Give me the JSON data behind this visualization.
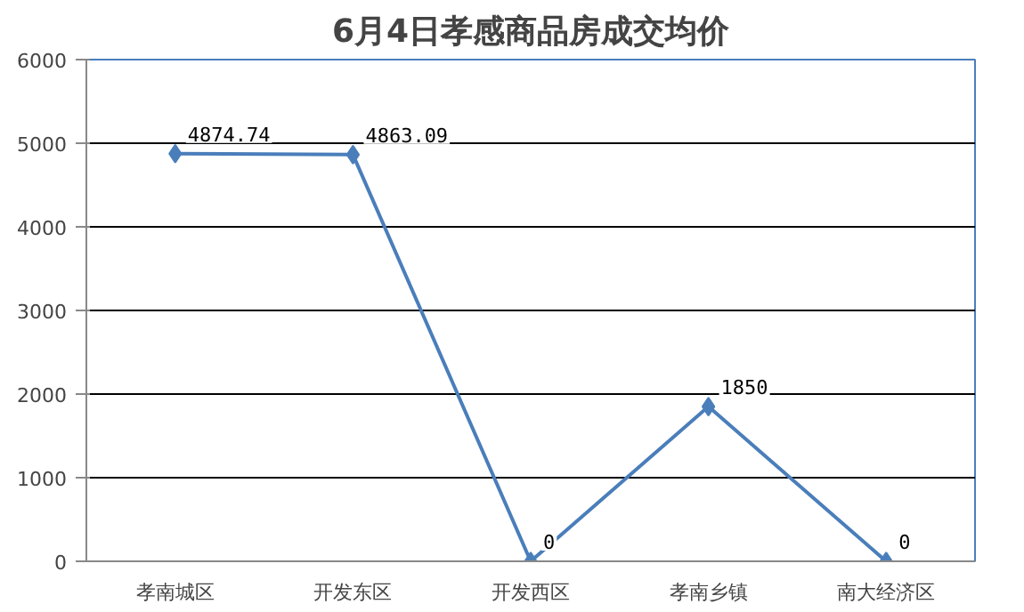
{
  "chart_data": {
    "type": "line",
    "title": "6月4日孝感商品房成交均价",
    "categories": [
      "孝南城区",
      "开发东区",
      "开发西区",
      "孝南乡镇",
      "南大经济区"
    ],
    "values": [
      4874.74,
      4863.09,
      0,
      1850,
      0
    ],
    "color": "#4a7ebb",
    "marker": "diamond",
    "data_labels": true,
    "ylim": [
      0,
      6000
    ],
    "yticks": [
      0,
      1000,
      2000,
      3000,
      4000,
      5000,
      6000
    ],
    "grid": "y"
  }
}
